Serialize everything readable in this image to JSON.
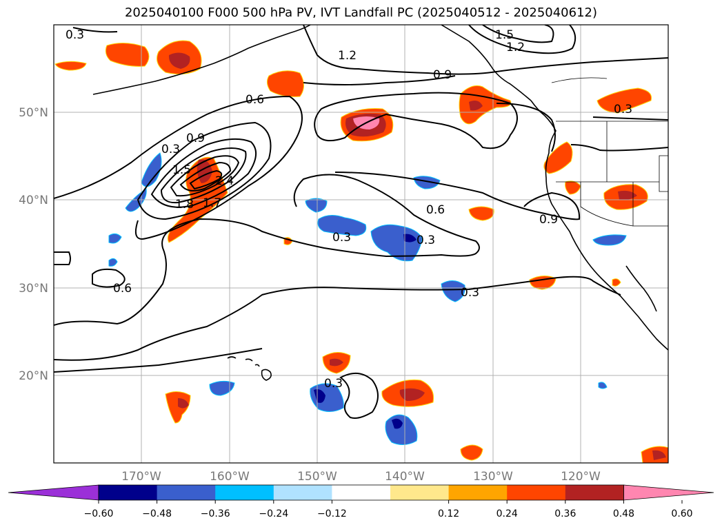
{
  "title": "2025040100 F000 500 hPa PV, IVT Landfall PC (2025040512 - 2025040612)",
  "lat_labels": [
    "50°N",
    "40°N",
    "30°N",
    "20°N"
  ],
  "lon_labels": [
    "170°W",
    "160°W",
    "150°W",
    "140°W",
    "130°W",
    "120°W"
  ],
  "contour_labels": [
    "0.3",
    "1.5",
    "1.2",
    "1.2",
    "0.9",
    "0.6",
    "0.3",
    "0.9",
    "0.3",
    "1.5",
    "2.4",
    "1.8",
    "1.7",
    "0.6",
    "0.9",
    "0.3",
    "0.3",
    "0.6",
    "0.3",
    "0.3"
  ],
  "colorbar": {
    "ticks": [
      "−0.60",
      "−0.48",
      "−0.36",
      "−0.24",
      "−0.12",
      "0.12",
      "0.24",
      "0.36",
      "0.48",
      "0.60"
    ],
    "colors": [
      "#9b30d8",
      "#00008b",
      "#3a5fcd",
      "#00bfff",
      "#b0e2ff",
      "#ffffff",
      "#ffe88c",
      "#ffa500",
      "#ff4500",
      "#b22222",
      "#ff86b0"
    ]
  },
  "map_colors": {
    "coast": "#000000",
    "grid": "#b0b0b0",
    "contour": "#000000"
  }
}
